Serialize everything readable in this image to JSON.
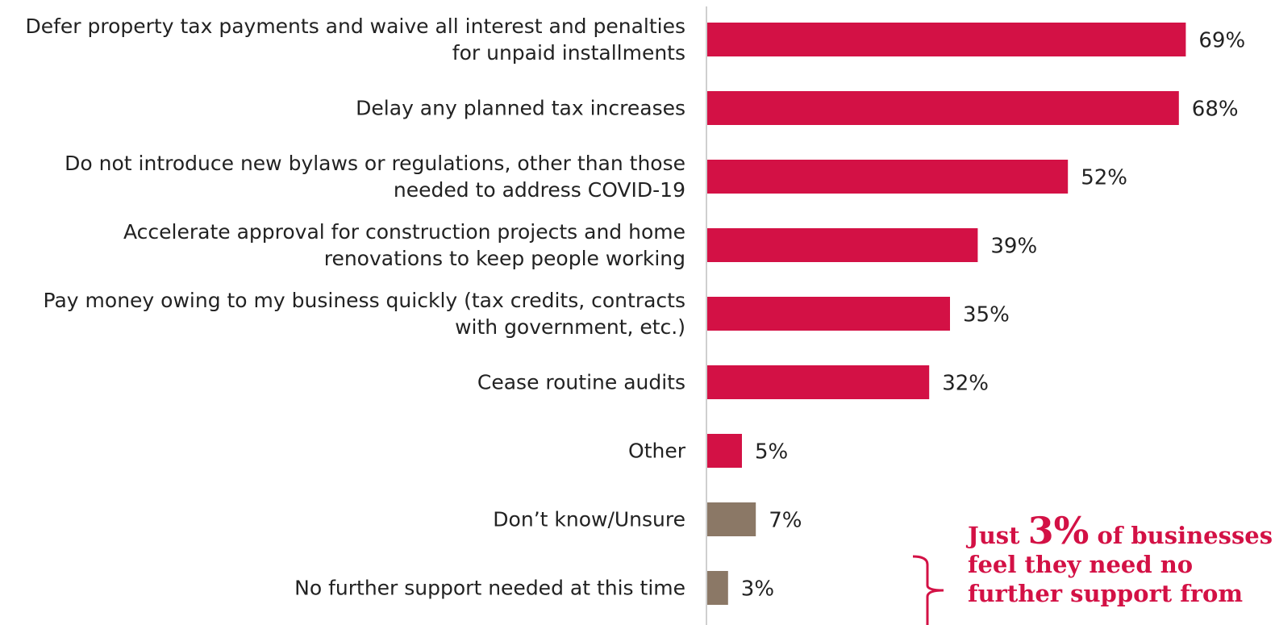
{
  "chart_data": {
    "type": "hbar",
    "categories": [
      "Defer property tax payments and waive all interest and penalties for unpaid installments",
      "Delay any planned tax increases",
      "Do not introduce new bylaws or regulations, other than those needed to address COVID-19",
      "Accelerate approval for construction projects and home renovations to keep people working",
      "Pay money owing to my business quickly (tax credits, contracts with government, etc.)",
      "Cease routine audits",
      "Other",
      "Don’t know/Unsure",
      "No further support needed at this time"
    ],
    "values": [
      69,
      68,
      52,
      39,
      35,
      32,
      5,
      7,
      3
    ],
    "value_labels": [
      "69%",
      "68%",
      "52%",
      "39%",
      "35%",
      "32%",
      "5%",
      "7%",
      "3%"
    ],
    "colors": [
      "#d31145",
      "#d31145",
      "#d31145",
      "#d31145",
      "#d31145",
      "#d31145",
      "#d31145",
      "#8b7866",
      "#8b7866"
    ],
    "xlim": [
      0,
      80
    ],
    "annotation": {
      "prefix": "Just",
      "highlight": "3%",
      "first_line_rest": "of businesses",
      "lines": [
        "feel they need no",
        "further support from"
      ]
    }
  }
}
